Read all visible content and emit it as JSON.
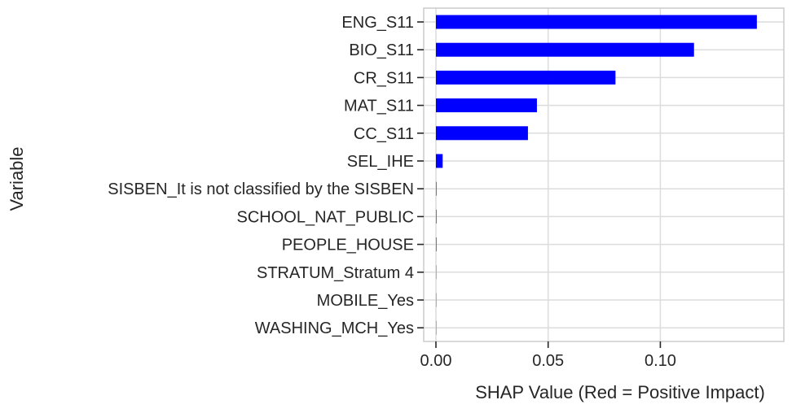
{
  "chart_data": {
    "type": "bar",
    "orientation": "horizontal",
    "xlabel": "SHAP Value (Red = Positive Impact)",
    "ylabel": "Variable",
    "xlim": [
      0,
      0.1445
    ],
    "xticks": [
      0.0,
      0.05,
      0.1
    ],
    "xtick_labels": [
      "0.00",
      "0.05",
      "0.10"
    ],
    "grid": true,
    "bar_color": "#0000ff",
    "categories": [
      "ENG_S11",
      "BIO_S11",
      "CR_S11",
      "MAT_S11",
      "CC_S11",
      "SEL_IHE",
      "SISBEN_It is not classified by the SISBEN",
      "SCHOOL_NAT_PUBLIC",
      "PEOPLE_HOUSE",
      "STRATUM_Stratum 4",
      "MOBILE_Yes",
      "WASHING_MCH_Yes"
    ],
    "values": [
      0.143,
      0.115,
      0.08,
      0.045,
      0.041,
      0.003,
      0.0002,
      0.0002,
      0.0002,
      0.0001,
      0.0001,
      0.0001
    ]
  }
}
